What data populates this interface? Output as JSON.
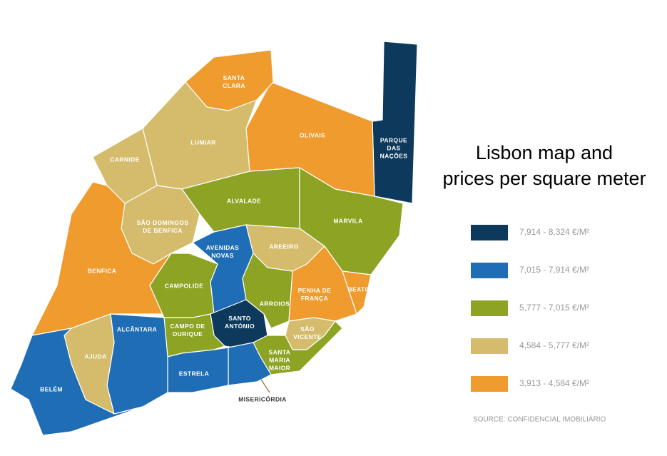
{
  "title_lines": [
    "Lisbon map and",
    "prices per square meter"
  ],
  "legend": [
    {
      "label": "7,914 - 8,324 €/M²",
      "color": "#0d3a5c"
    },
    {
      "label": "7,015 - 7,914 €/M²",
      "color": "#1f6db5"
    },
    {
      "label": "5,777 - 7,015 €/M²",
      "color": "#8da324"
    },
    {
      "label": "4,584 - 5,777 €/M²",
      "color": "#d4bc6c"
    },
    {
      "label": "3,913 - 4,584 €/M²",
      "color": "#ef9b2d"
    }
  ],
  "districts": [
    {
      "label_lines": [
        "PARQUE",
        "DAS",
        "NAÇÕES"
      ],
      "color": "#0d3a5c"
    },
    {
      "label_lines": [
        "OLIVAIS"
      ],
      "color": "#ef9b2d"
    },
    {
      "label_lines": [
        "SANTA",
        "CLARA"
      ],
      "color": "#ef9b2d"
    },
    {
      "label_lines": [
        "LUMIAR"
      ],
      "color": "#d4bc6c"
    },
    {
      "label_lines": [
        "CARNIDE"
      ],
      "color": "#d4bc6c"
    },
    {
      "label_lines": [
        "ALVALADE"
      ],
      "color": "#8da324"
    },
    {
      "label_lines": [
        "MARVILA"
      ],
      "color": "#8da324"
    },
    {
      "label_lines": [
        "SÃO DOMINGOS",
        "DE BENFICA"
      ],
      "color": "#d4bc6c"
    },
    {
      "label_lines": [
        "BENFICA"
      ],
      "color": "#ef9b2d"
    },
    {
      "label_lines": [
        "AVENIDAS",
        "NOVAS"
      ],
      "color": "#1f6db5"
    },
    {
      "label_lines": [
        "AREEIRO"
      ],
      "color": "#d4bc6c"
    },
    {
      "label_lines": [
        "CAMPOLIDE"
      ],
      "color": "#8da324"
    },
    {
      "label_lines": [
        "ARROIOS"
      ],
      "color": "#8da324"
    },
    {
      "label_lines": [
        "PENHA DE",
        "FRANÇA"
      ],
      "color": "#ef9b2d"
    },
    {
      "label_lines": [
        "BEATO"
      ],
      "color": "#ef9b2d"
    },
    {
      "label_lines": [
        "SANTO",
        "ANTÓNIO"
      ],
      "color": "#0d3a5c"
    },
    {
      "label_lines": [
        "CAMPO DE",
        "OURIQUE"
      ],
      "color": "#8da324"
    },
    {
      "label_lines": [
        "SÃO",
        "VICENTE"
      ],
      "color": "#d4bc6c"
    },
    {
      "label_lines": [
        "SANTA",
        "MARIA",
        "MAIOR"
      ],
      "color": "#8da324"
    },
    {
      "label_lines": [
        "MISERICÓRDIA"
      ],
      "color": "#1f6db5"
    },
    {
      "label_lines": [
        "ESTRELA"
      ],
      "color": "#1f6db5"
    },
    {
      "label_lines": [
        "ALCÂNTARA"
      ],
      "color": "#1f6db5"
    },
    {
      "label_lines": [
        "AJUDA"
      ],
      "color": "#d4bc6c"
    },
    {
      "label_lines": [
        "BELÉM"
      ],
      "color": "#1f6db5"
    }
  ],
  "source": "SOURCE: CONFIDENCIAL IMOBILIÁRIO"
}
